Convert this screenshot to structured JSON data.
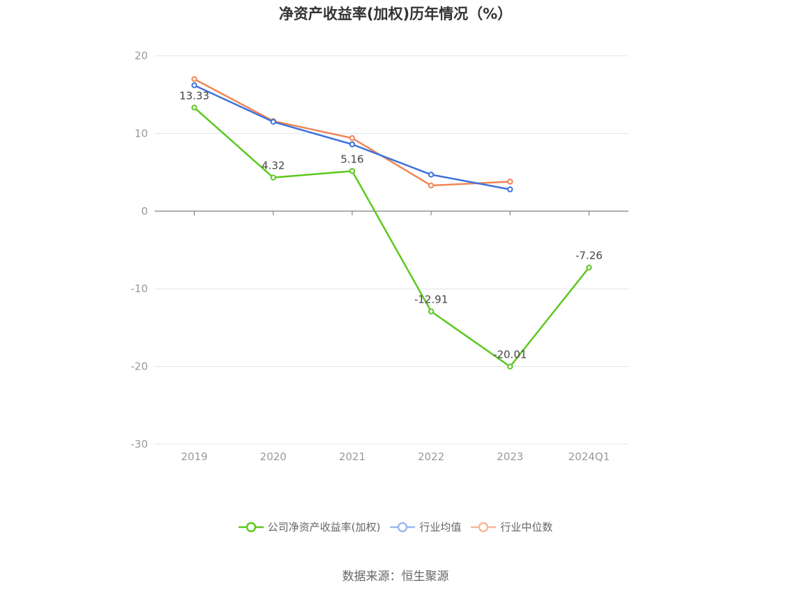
{
  "chart_data": {
    "type": "line",
    "title": "净资产收益率(加权)历年情况（%）",
    "categories": [
      "2019",
      "2020",
      "2021",
      "2022",
      "2023",
      "2024Q1"
    ],
    "ylim": [
      -30,
      20
    ],
    "yticks": [
      20,
      10,
      0,
      -10,
      -20,
      -30
    ],
    "grid": true,
    "legend_position": "bottom",
    "series": [
      {
        "name": "公司净资产收益率(加权)",
        "color": "#5cc820",
        "values": [
          13.33,
          4.32,
          5.16,
          -12.91,
          -20.01,
          -7.26
        ],
        "labels": [
          "13.33",
          "4.32",
          "5.16",
          "-12.91",
          "-20.01",
          "-7.26"
        ]
      },
      {
        "name": "行业均值",
        "color": "#3d72dc",
        "legend_color": "#9ab8ee",
        "values": [
          16.2,
          11.5,
          8.6,
          4.7,
          2.8,
          null
        ]
      },
      {
        "name": "行业中位数",
        "color": "#f08454",
        "legend_color": "#f6b89c",
        "values": [
          17.0,
          11.6,
          9.4,
          3.3,
          3.8,
          null
        ]
      }
    ]
  },
  "source": "数据来源：恒生聚源"
}
